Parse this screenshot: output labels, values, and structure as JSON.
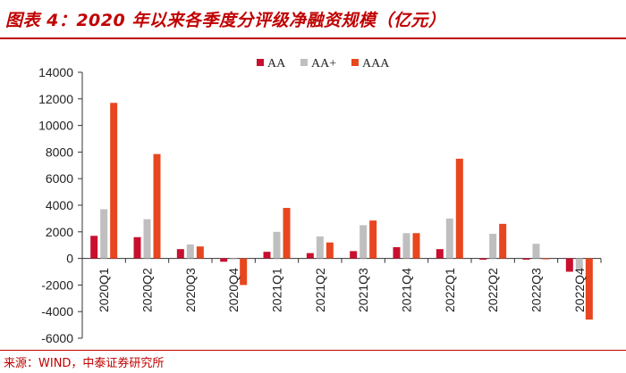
{
  "header": {
    "title": "图表 4：2020 年以来各季度分评级净融资规模（亿元）"
  },
  "footer": {
    "source": "来源：WIND，中泰证券研究所"
  },
  "colors": {
    "AA": "#c8102e",
    "AA+": "#bfbfbf",
    "AAA": "#e8461e",
    "title": "#c00000"
  },
  "chart_data": {
    "type": "bar",
    "title": "",
    "xlabel": "",
    "ylabel": "",
    "categories": [
      "2020Q1",
      "2020Q2",
      "2020Q3",
      "2020Q4",
      "2021Q1",
      "2021Q2",
      "2021Q3",
      "2021Q4",
      "2022Q1",
      "2022Q2",
      "2022Q3",
      "2022Q4"
    ],
    "series": [
      {
        "name": "AA",
        "values": [
          1700,
          1600,
          700,
          -250,
          500,
          400,
          550,
          850,
          700,
          -100,
          -100,
          -1000
        ]
      },
      {
        "name": "AA+",
        "values": [
          3700,
          2950,
          1050,
          -50,
          2000,
          1650,
          2500,
          1900,
          3000,
          1850,
          1100,
          -850
        ]
      },
      {
        "name": "AAA",
        "values": [
          11700,
          7850,
          900,
          -2000,
          3800,
          1200,
          2850,
          1900,
          7500,
          2600,
          -50,
          -4600
        ]
      }
    ],
    "yticks": [
      "14000",
      "12000",
      "10000",
      "8000",
      "6000",
      "4000",
      "2000",
      "0",
      "-2000",
      "-4000",
      "-6000"
    ],
    "ylim": [
      -6000,
      14000
    ],
    "legend": "top-center",
    "grid": false
  }
}
